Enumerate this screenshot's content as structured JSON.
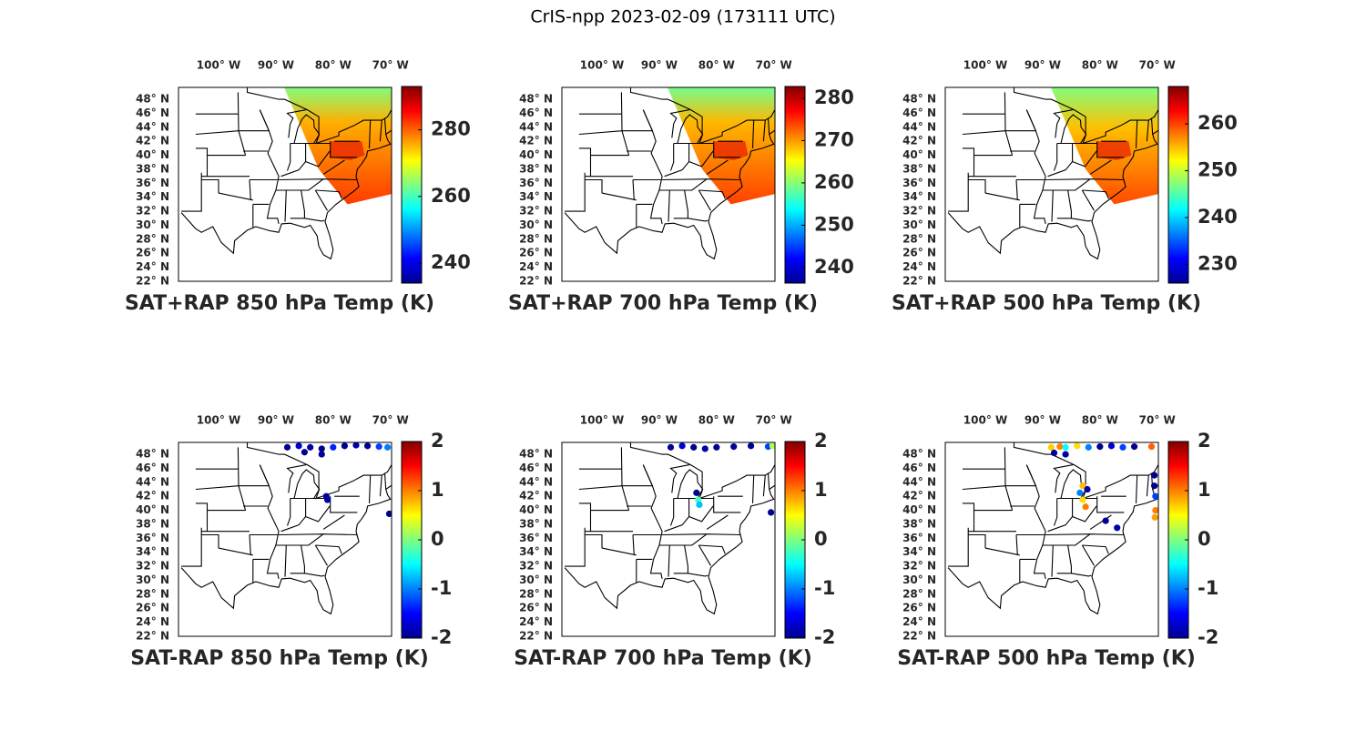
{
  "title": "CrIS-npp 2023-02-09 (173111 UTC)",
  "map": {
    "lonlim": [
      -107,
      -69.8
    ],
    "latlim": [
      22,
      49.7
    ],
    "lonticks": [
      {
        "value": -100,
        "label": "100° W"
      },
      {
        "value": -90,
        "label": "90° W"
      },
      {
        "value": -80,
        "label": "80° W"
      },
      {
        "value": -70,
        "label": "70° W"
      }
    ],
    "latticks": [
      {
        "value": 48,
        "label": "48° N"
      },
      {
        "value": 46,
        "label": "46° N"
      },
      {
        "value": 44,
        "label": "44° N"
      },
      {
        "value": 42,
        "label": "42° N"
      },
      {
        "value": 40,
        "label": "40° N"
      },
      {
        "value": 38,
        "label": "38° N"
      },
      {
        "value": 36,
        "label": "36° N"
      },
      {
        "value": 34,
        "label": "34° N"
      },
      {
        "value": 32,
        "label": "32° N"
      },
      {
        "value": 30,
        "label": "30° N"
      },
      {
        "value": 28,
        "label": "28° N"
      },
      {
        "value": 26,
        "label": "26° N"
      },
      {
        "value": 24,
        "label": "24° N"
      },
      {
        "value": 22,
        "label": "22° N"
      }
    ]
  },
  "panels": [
    {
      "title": "SAT+RAP 850 hPa Temp (K)",
      "clim": [
        234,
        293
      ],
      "cticks": [
        240,
        260,
        280
      ]
    },
    {
      "title": "SAT+RAP 700 hPa Temp (K)",
      "clim": [
        236.3,
        282.8
      ],
      "cticks": [
        240,
        250,
        260,
        270,
        280
      ]
    },
    {
      "title": "SAT+RAP 500 hPa Temp (K)",
      "clim": [
        226,
        268
      ],
      "cticks": [
        230,
        240,
        250,
        260
      ]
    },
    {
      "title": "SAT-RAP 850 hPa Temp (K)",
      "clim": [
        -2,
        2
      ],
      "cticks": [
        -2,
        -1,
        0,
        1,
        2
      ]
    },
    {
      "title": "SAT-RAP 700 hPa Temp (K)",
      "clim": [
        -2,
        2
      ],
      "cticks": [
        -2,
        -1,
        0,
        1,
        2
      ]
    },
    {
      "title": "SAT-RAP 500 hPa Temp (K)",
      "clim": [
        -2,
        2
      ],
      "cticks": [
        -2,
        -1,
        0,
        1,
        2
      ]
    }
  ]
}
